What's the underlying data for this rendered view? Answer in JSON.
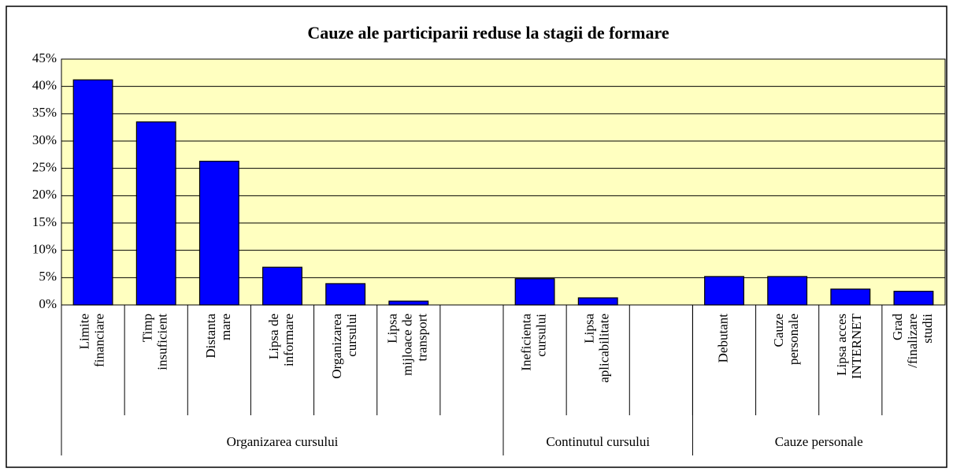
{
  "chart_data": {
    "type": "bar",
    "title": "Cauze ale participarii reduse la stagii de formare",
    "categories": [
      "Limite\nfinanciare",
      "Timp\ninsuficient",
      "Distanta\nmare",
      "Lipsa de\ninformare",
      "Organizarea\ncursului",
      "Lipsa\nmijloace de\ntransport",
      null,
      "Ineficienta\ncursului",
      "Lipsa\naplicabilitate",
      null,
      "Debutant",
      "Cauze\npersonale",
      "Lipsa acces\nINTERNET",
      "Grad\n/finalizare\nstudii"
    ],
    "values": [
      41.2,
      33.5,
      26.3,
      6.9,
      3.9,
      0.7,
      null,
      4.8,
      1.3,
      null,
      5.2,
      5.2,
      2.9,
      2.5
    ],
    "groups": [
      {
        "label": "Organizarea cursului",
        "count": 7
      },
      {
        "label": "Continutul cursului",
        "count": 3
      },
      {
        "label": "Cauze personale",
        "count": 4
      }
    ],
    "color": "#0000ff",
    "ylim": [
      0,
      45
    ],
    "yticks": [
      {
        "value": 0,
        "label": "0%"
      },
      {
        "value": 5,
        "label": "5%"
      },
      {
        "value": 10,
        "label": "10%"
      },
      {
        "value": 15,
        "label": "15%"
      },
      {
        "value": 20,
        "label": "20%"
      },
      {
        "value": 25,
        "label": "25%"
      },
      {
        "value": 30,
        "label": "30%"
      },
      {
        "value": 35,
        "label": "35%"
      },
      {
        "value": 40,
        "label": "40%"
      },
      {
        "value": 45,
        "label": "45%"
      }
    ],
    "grid": true
  }
}
